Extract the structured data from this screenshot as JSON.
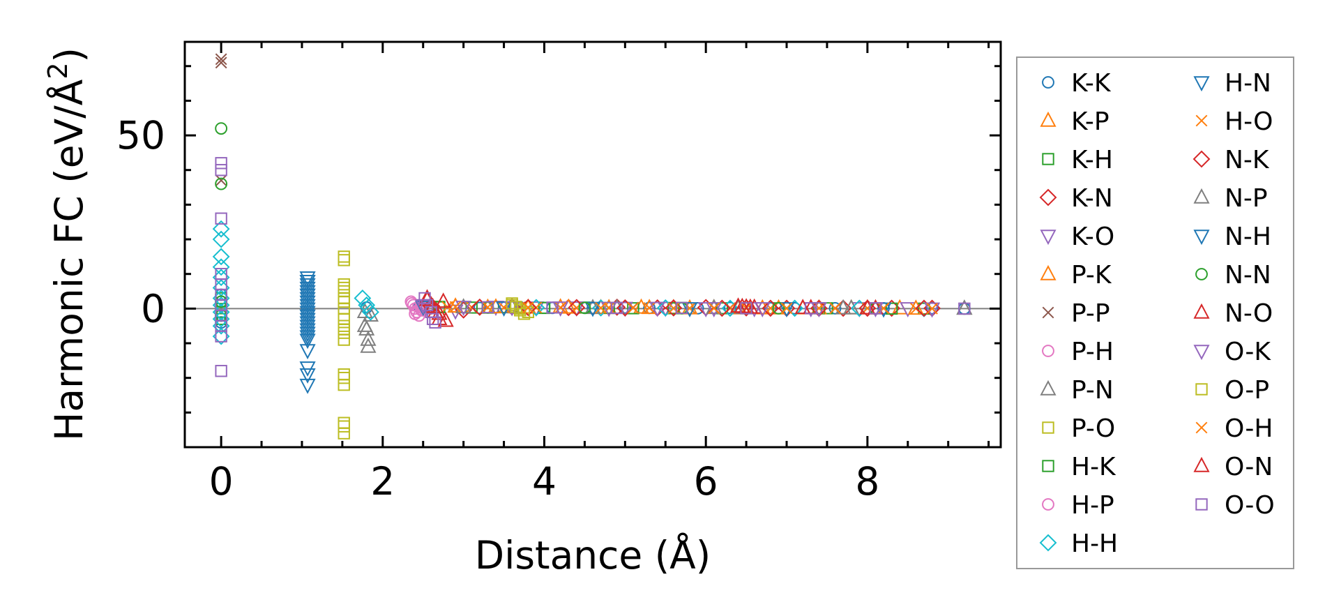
{
  "chart_data": {
    "type": "scatter",
    "title": "",
    "xlabel": "Distance (Å)",
    "ylabel_main": "Harmonic FC (eV/Å",
    "ylabel_sup": "2",
    "ylabel_close": ")",
    "xlim": [
      -0.45,
      9.65
    ],
    "ylim": [
      -40,
      77
    ],
    "xticks": [
      0,
      2,
      4,
      6,
      8
    ],
    "xtick_labels": [
      "0",
      "2",
      "4",
      "6",
      "8"
    ],
    "yticks": [
      0,
      50
    ],
    "ytick_labels": [
      "0",
      "50"
    ],
    "zero_line": true,
    "grid": false,
    "legend_position": "outside-right",
    "series": [
      {
        "name": "K-K",
        "marker": "circle",
        "color": "#1f77b4",
        "x": [
          0,
          0,
          0,
          0,
          1.8,
          2.45,
          3.2,
          3.7,
          4.1,
          4.6,
          5.0,
          5.3,
          5.9,
          6.3,
          6.8,
          7.1,
          7.6,
          8.2,
          8.8,
          9.2
        ],
        "y": [
          2,
          -2,
          4,
          -4,
          0.3,
          0.5,
          0.2,
          0.4,
          0.2,
          0.1,
          0.3,
          0.2,
          0.1,
          0.2,
          0.1,
          0.1,
          0.1,
          0.1,
          0.1,
          0
        ]
      },
      {
        "name": "K-P",
        "marker": "triangle-up",
        "color": "#ff7f0e",
        "x": [
          2.9,
          3.3,
          3.6,
          4.2,
          4.7,
          5.2,
          5.6,
          6.1,
          6.7,
          7.2,
          7.8,
          8.4
        ],
        "y": [
          0.6,
          0.3,
          0.5,
          0.4,
          0.2,
          0.3,
          0.2,
          0.2,
          0.1,
          0.1,
          0.1,
          0.1
        ]
      },
      {
        "name": "K-H",
        "marker": "square",
        "color": "#2ca02c",
        "x": [
          2.7,
          3.1,
          3.5,
          4.0,
          4.5,
          5.1,
          5.7,
          6.2,
          6.9,
          7.5,
          8.1,
          8.7
        ],
        "y": [
          0.5,
          0.3,
          0.4,
          0.2,
          0.3,
          0.1,
          0.2,
          0.1,
          0.1,
          0.1,
          0.1,
          0.0
        ]
      },
      {
        "name": "K-N",
        "marker": "diamond",
        "color": "#d62728",
        "x": [
          2.6,
          3.0,
          3.6,
          4.3,
          4.9,
          5.4,
          6.0,
          6.5,
          7.0,
          7.7,
          8.3,
          8.8
        ],
        "y": [
          0.8,
          -0.4,
          0.5,
          0.3,
          0.4,
          0.2,
          0.3,
          0.2,
          0.1,
          0.1,
          0.1,
          0.1
        ]
      },
      {
        "name": "K-O",
        "marker": "triangle-down",
        "color": "#9467bd",
        "x": [
          2.5,
          2.9,
          3.4,
          3.9,
          4.4,
          5.0,
          5.5,
          6.0,
          6.6,
          7.3,
          7.9,
          8.5
        ],
        "y": [
          1.0,
          -0.6,
          0.5,
          0.3,
          0.3,
          0.2,
          0.2,
          0.1,
          0.1,
          0.1,
          0.1,
          0.1
        ]
      },
      {
        "name": "P-K",
        "marker": "triangle-up",
        "color": "#ff7f0e",
        "x": [
          2.9,
          3.4,
          3.8,
          4.3,
          4.8,
          5.3,
          5.8,
          6.4,
          6.9,
          7.4,
          8.0,
          8.6
        ],
        "y": [
          0.6,
          0.4,
          0.3,
          0.3,
          0.2,
          0.2,
          0.1,
          0.1,
          0.1,
          0.1,
          0.1,
          0.0
        ]
      },
      {
        "name": "P-P",
        "marker": "x",
        "color": "#8c564b",
        "x": [
          0,
          0,
          0,
          3.7,
          5.1,
          6.3,
          7.6
        ],
        "y": [
          72,
          71,
          37,
          0.4,
          0.3,
          0.2,
          0.1
        ]
      },
      {
        "name": "P-H",
        "marker": "circle",
        "color": "#e377c2",
        "x": [
          2.35,
          2.38,
          2.4,
          2.42,
          2.45,
          2.48,
          2.5
        ],
        "y": [
          2,
          1,
          0,
          -1,
          -2,
          0.5,
          -0.5
        ]
      },
      {
        "name": "P-N",
        "marker": "triangle-up",
        "color": "#7f7f7f",
        "x": [
          1.78,
          1.8,
          1.82,
          1.85,
          3.6,
          4.9,
          6.4,
          7.8,
          9.2
        ],
        "y": [
          -1,
          -6,
          -11,
          -2,
          0.4,
          0.2,
          0.2,
          0.1,
          0
        ]
      },
      {
        "name": "P-O",
        "marker": "square",
        "color": "#bcbd22",
        "x": [
          1.52,
          1.52,
          1.52,
          1.52,
          1.52,
          1.52,
          1.52,
          1.52,
          1.52,
          1.52,
          1.52,
          1.52,
          1.52,
          1.52,
          3.6,
          3.7,
          3.8
        ],
        "y": [
          15,
          7,
          5,
          3,
          0,
          -3,
          -5,
          -7,
          -9,
          -19,
          -22,
          -33,
          -36,
          2,
          1,
          0,
          -1
        ]
      },
      {
        "name": "H-K",
        "marker": "square",
        "color": "#2ca02c",
        "x": [
          0,
          0,
          0,
          0,
          2.7,
          3.3,
          4.0,
          4.8,
          5.6,
          6.5,
          7.4,
          8.3
        ],
        "y": [
          1,
          -1,
          3,
          -3,
          0.4,
          0.3,
          0.2,
          0.2,
          0.1,
          0.1,
          0.1,
          0.0
        ]
      },
      {
        "name": "H-P",
        "marker": "circle",
        "color": "#e377c2",
        "x": [
          2.36,
          2.4,
          2.44,
          2.48
        ],
        "y": [
          1.5,
          -1.5,
          0.5,
          -0.5
        ]
      },
      {
        "name": "H-H",
        "marker": "diamond",
        "color": "#17becf",
        "x": [
          0,
          0,
          0,
          0,
          0,
          0,
          0,
          0,
          0,
          0,
          0,
          0,
          1.75,
          1.8,
          1.85,
          3.9,
          4.7,
          5.5,
          6.3,
          7.1,
          7.9,
          8.7
        ],
        "y": [
          23,
          20,
          15,
          12,
          9,
          6,
          3,
          1,
          -1,
          -3,
          -5,
          -8,
          3,
          1,
          -1,
          0.3,
          0.2,
          0.2,
          0.1,
          0.1,
          0.1,
          0
        ]
      },
      {
        "name": "H-N",
        "marker": "triangle-down",
        "color": "#1f77b4",
        "x": [
          1.07,
          1.07,
          1.07,
          1.07,
          1.07,
          1.07,
          1.07,
          1.07,
          1.07,
          1.07,
          1.07,
          1.07,
          1.07,
          1.07,
          1.07,
          1.07,
          1.07,
          1.07,
          1.07,
          1.07,
          1.07,
          1.07
        ],
        "y": [
          9,
          8,
          7,
          6,
          5,
          4,
          3,
          2,
          1,
          0,
          -1,
          -2,
          -3,
          -4,
          -5,
          -6,
          -7,
          -9,
          -12,
          -17,
          -19,
          -22
        ]
      },
      {
        "name": "H-O",
        "marker": "x",
        "color": "#ff7f0e",
        "x": [
          2.8,
          3.1,
          3.5,
          3.9,
          4.4,
          4.8,
          5.3,
          5.8,
          6.3,
          6.8,
          7.4,
          8.0,
          8.6
        ],
        "y": [
          0.5,
          0.4,
          0.3,
          0.3,
          0.2,
          0.2,
          0.2,
          0.1,
          0.1,
          0.1,
          0.1,
          0.1,
          0.0
        ]
      },
      {
        "name": "N-K",
        "marker": "diamond",
        "color": "#d62728",
        "x": [
          2.6,
          3.2,
          3.8,
          4.4,
          5.0,
          5.6,
          6.2,
          6.8,
          7.4,
          8.0,
          8.7
        ],
        "y": [
          0.7,
          0.4,
          0.3,
          0.3,
          0.2,
          0.2,
          0.1,
          0.1,
          0.1,
          0.1,
          0.1
        ]
      },
      {
        "name": "N-P",
        "marker": "triangle-up",
        "color": "#7f7f7f",
        "x": [
          1.78,
          1.82,
          3.0,
          4.6,
          6.1,
          7.7,
          9.2
        ],
        "y": [
          -5,
          -9,
          0.4,
          0.2,
          0.2,
          0.1,
          0
        ]
      },
      {
        "name": "N-H",
        "marker": "triangle-down",
        "color": "#1f77b4",
        "x": [
          1.07,
          1.07,
          1.07,
          1.07,
          2.5,
          3.5,
          4.6,
          5.8,
          7.0,
          8.2
        ],
        "y": [
          8,
          4,
          -2,
          -8,
          0.5,
          0.3,
          0.2,
          0.1,
          0.1,
          0.0
        ]
      },
      {
        "name": "N-N",
        "marker": "circle",
        "color": "#2ca02c",
        "x": [
          0,
          0,
          0,
          0,
          3.3,
          4.5,
          5.7,
          6.9,
          8.1
        ],
        "y": [
          52,
          36,
          2,
          -2,
          0.3,
          0.2,
          0.1,
          0.1,
          0
        ]
      },
      {
        "name": "N-O",
        "marker": "triangle-up",
        "color": "#d62728",
        "x": [
          2.55,
          2.6,
          2.65,
          2.7,
          2.75,
          6.4,
          6.5,
          6.6,
          7.3,
          8.1
        ],
        "y": [
          3,
          1,
          -1,
          -3,
          2,
          0.6,
          0.4,
          0.3,
          0.2,
          0.1
        ]
      },
      {
        "name": "O-K",
        "marker": "triangle-down",
        "color": "#9467bd",
        "x": [
          2.5,
          3.0,
          3.6,
          4.2,
          4.8,
          5.4,
          6.1,
          6.7,
          7.4,
          8.1,
          8.8
        ],
        "y": [
          0.9,
          0.5,
          0.4,
          0.3,
          0.2,
          0.2,
          0.1,
          0.1,
          0.1,
          0.1,
          0.0
        ]
      },
      {
        "name": "O-P",
        "marker": "square",
        "color": "#bcbd22",
        "x": [
          1.52,
          1.52,
          1.52,
          1.52,
          1.52,
          1.52,
          3.6,
          3.65,
          3.7,
          3.75
        ],
        "y": [
          14,
          6,
          0,
          -6,
          -20,
          -34,
          1.5,
          0.5,
          -0.5,
          -1.5
        ]
      },
      {
        "name": "O-H",
        "marker": "x",
        "color": "#ff7f0e",
        "x": [
          2.9,
          3.3,
          3.8,
          4.2,
          4.7,
          5.1,
          5.6,
          6.1,
          6.5,
          7.0,
          7.6,
          8.2,
          8.8
        ],
        "y": [
          0.5,
          0.4,
          0.3,
          0.3,
          0.2,
          0.2,
          0.1,
          0.1,
          0.1,
          0.1,
          0.1,
          0.1,
          0.0
        ]
      },
      {
        "name": "O-N",
        "marker": "triangle-up",
        "color": "#d62728",
        "x": [
          2.55,
          2.62,
          2.7,
          2.78,
          6.45,
          6.55,
          7.2,
          8.0
        ],
        "y": [
          2.5,
          0.5,
          -1.5,
          -3.5,
          0.5,
          0.3,
          0.2,
          0.1
        ]
      },
      {
        "name": "O-O",
        "marker": "square",
        "color": "#9467bd",
        "x": [
          0,
          0,
          0,
          0,
          0,
          0,
          0,
          0,
          0,
          0,
          0,
          2.52,
          2.55,
          2.6,
          2.62,
          2.65,
          3.3,
          4.1,
          4.9,
          5.7,
          6.5,
          7.3,
          8.1,
          9.2
        ],
        "y": [
          42,
          40,
          26,
          10,
          7,
          4,
          1,
          -2,
          -5,
          -8,
          -18,
          3,
          1,
          -1,
          -3,
          -4,
          0.4,
          0.3,
          0.2,
          0.2,
          0.1,
          0.1,
          0.1,
          0
        ]
      }
    ]
  }
}
